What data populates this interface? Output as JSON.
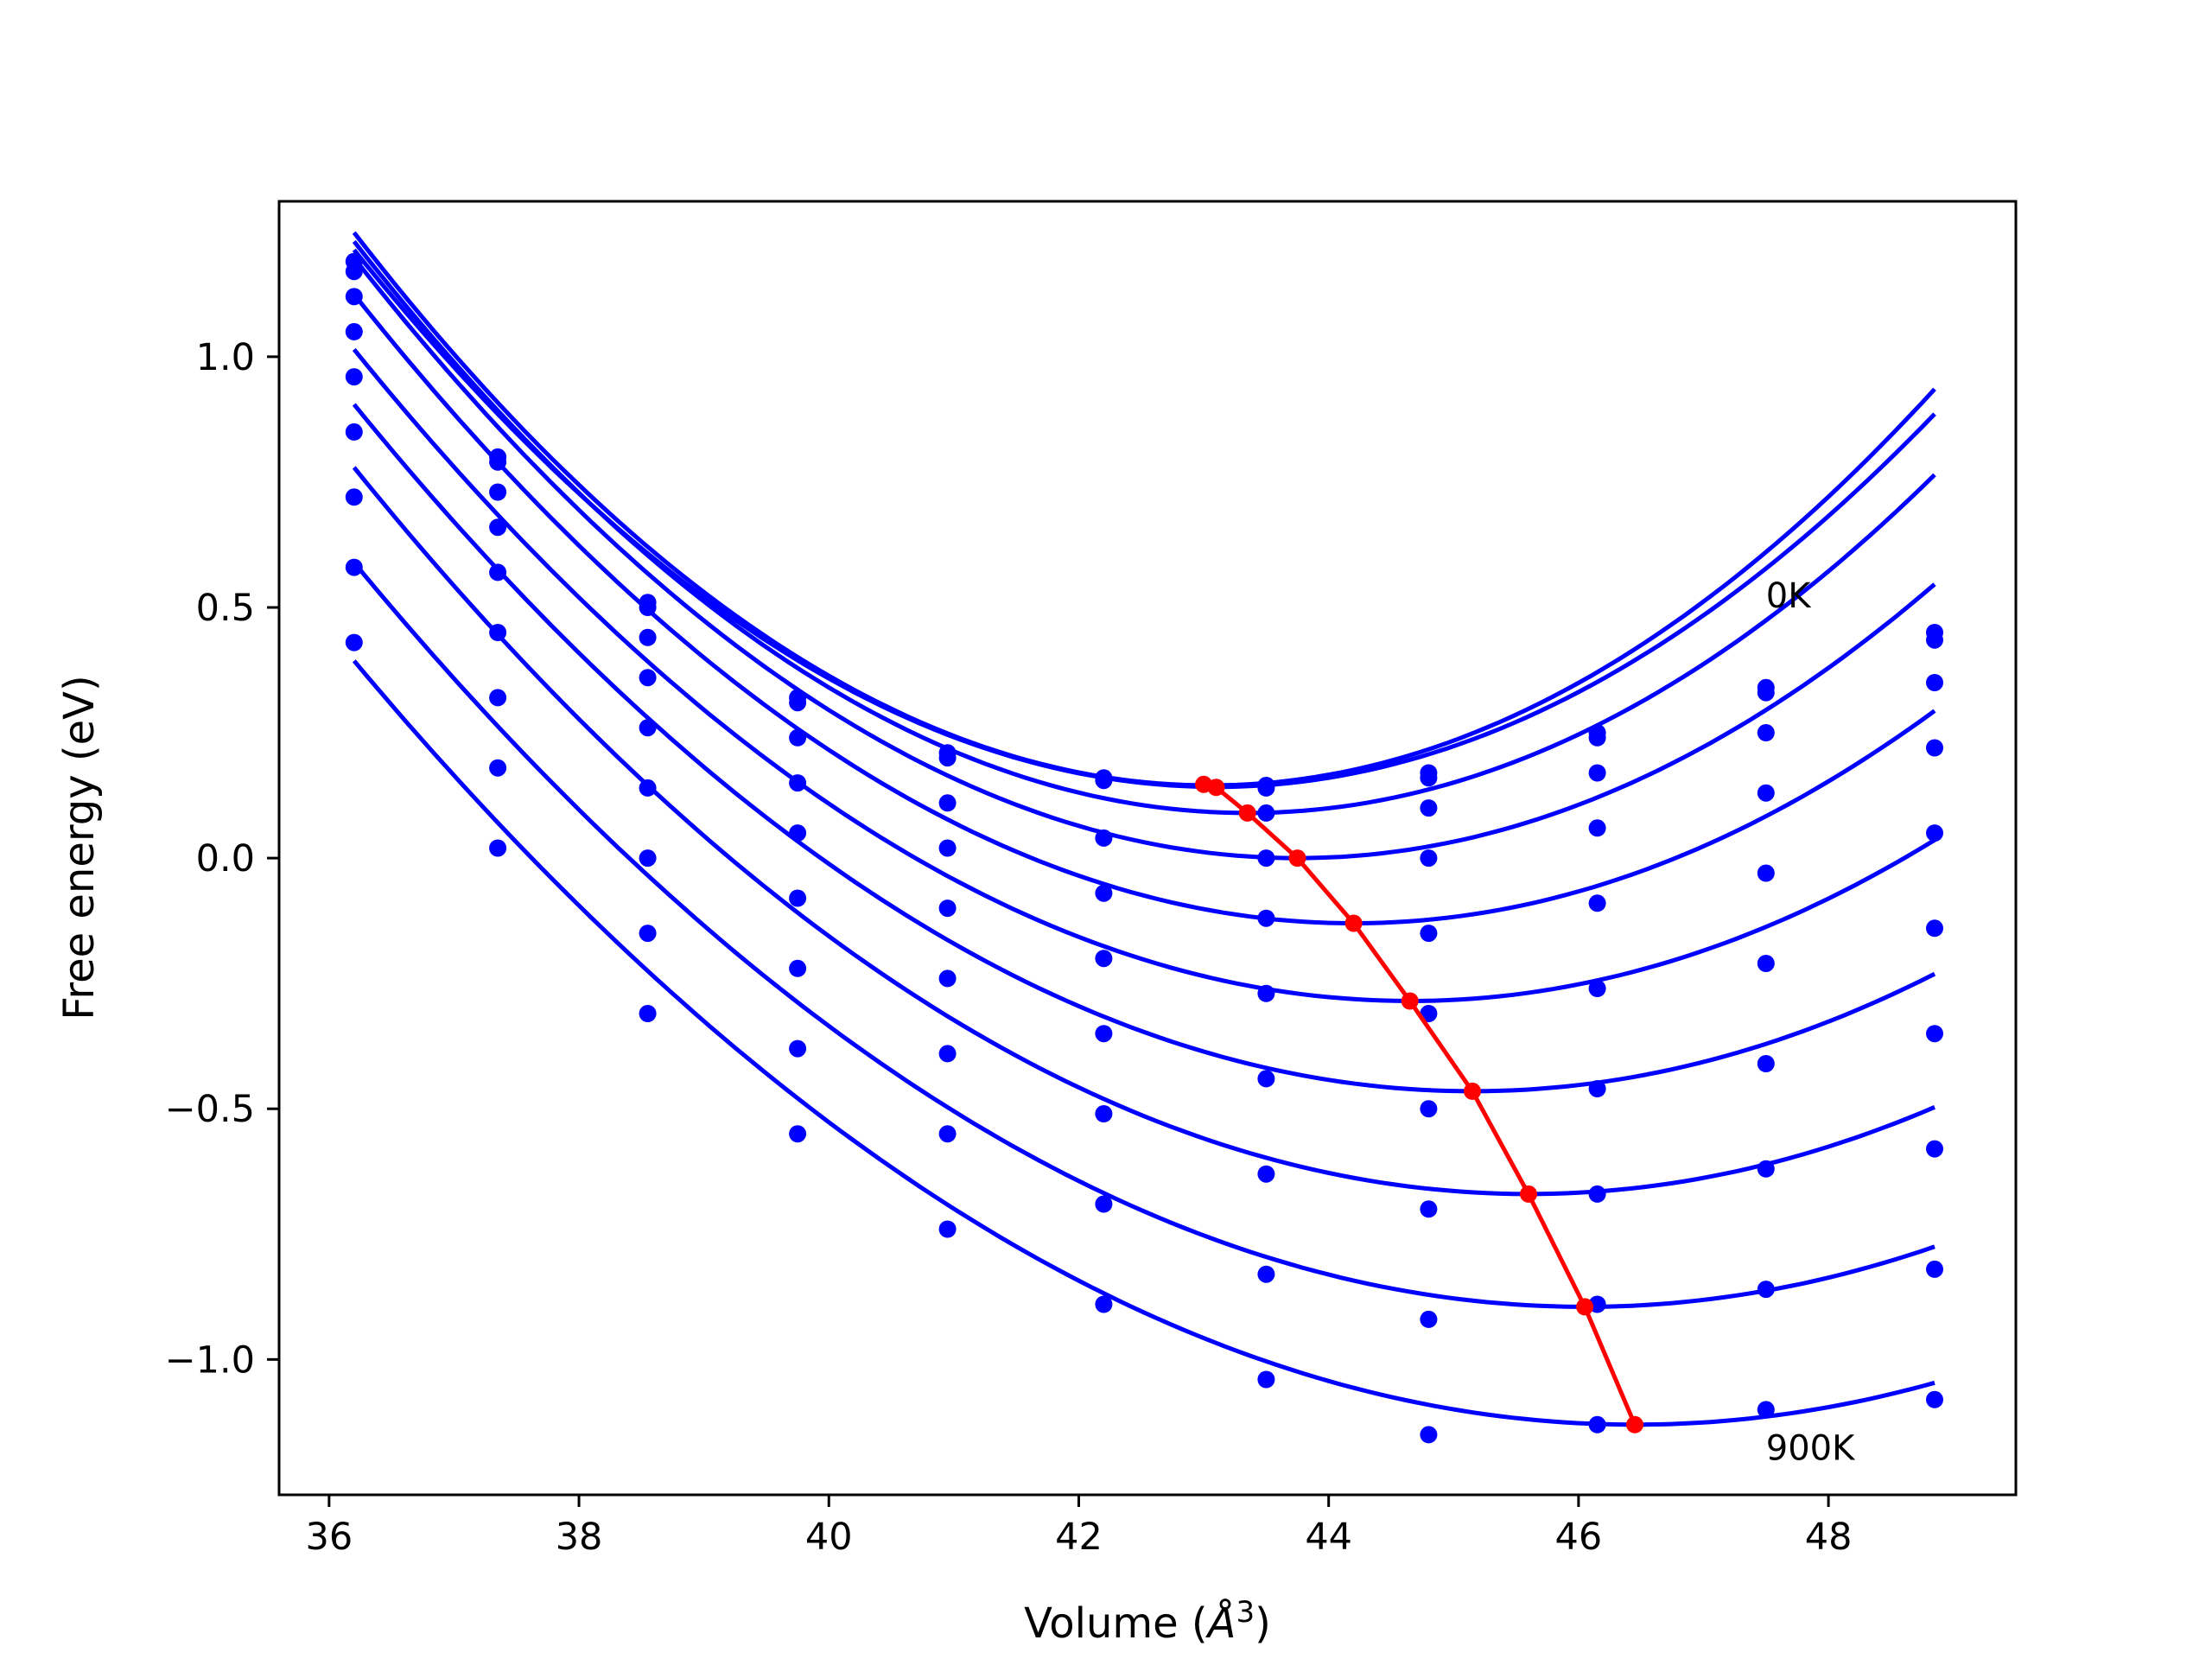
{
  "chart_data": {
    "type": "line",
    "xlabel": "Volume (",
    "xlabel_sym": "Å",
    "xlabel_exp": "3",
    "xlabel_close": ")",
    "ylabel": "Free energy (eV)",
    "xlim": [
      35.6,
      49.5
    ],
    "ylim": [
      -1.27,
      1.31
    ],
    "xticks": [
      36,
      38,
      40,
      42,
      44,
      46,
      48
    ],
    "xtick_labels": [
      "36",
      "38",
      "40",
      "42",
      "44",
      "46",
      "48"
    ],
    "yticks": [
      -1.0,
      -0.5,
      0.0,
      0.5,
      1.0
    ],
    "ytick_labels": [
      "−1.0",
      "−0.5",
      "0.0",
      "0.5",
      "1.0"
    ],
    "grid": false,
    "colors": {
      "fit": "#0000ff",
      "points": "#0000ff",
      "minimum": "#ff0000"
    },
    "annotations": [
      {
        "text": "0K",
        "x": 47.5,
        "y": 0.5
      },
      {
        "text": "900K",
        "x": 47.5,
        "y": -1.2
      }
    ],
    "x": [
      36.2,
      37.35,
      38.55,
      39.75,
      40.95,
      42.2,
      43.5,
      44.8,
      46.15,
      47.5,
      48.85
    ],
    "series": [
      {
        "points": [
          1.19,
          0.8,
          0.51,
          0.32,
          0.21,
          0.16,
          0.14,
          0.17,
          0.25,
          0.34,
          0.45
        ],
        "minimum": [
          43.0,
          0.147
        ]
      },
      {
        "points": [
          1.17,
          0.79,
          0.5,
          0.31,
          0.2,
          0.155,
          0.145,
          0.16,
          0.24,
          0.33,
          0.435
        ],
        "minimum": [
          43.1,
          0.141
        ]
      },
      {
        "points": [
          1.12,
          0.73,
          0.44,
          0.24,
          0.11,
          0.04,
          0.09,
          0.1,
          0.17,
          0.25,
          0.35
        ],
        "minimum": [
          43.35,
          0.09
        ]
      },
      {
        "points": [
          1.05,
          0.66,
          0.36,
          0.15,
          0.02,
          -0.07,
          0.0,
          0.0,
          0.06,
          0.13,
          0.22
        ],
        "minimum": [
          43.75,
          0.0
        ]
      },
      {
        "points": [
          0.96,
          0.57,
          0.26,
          0.05,
          -0.1,
          -0.2,
          -0.12,
          -0.15,
          -0.09,
          -0.03,
          0.05
        ],
        "minimum": [
          44.2,
          -0.13
        ]
      },
      {
        "points": [
          0.85,
          0.45,
          0.14,
          -0.08,
          -0.24,
          -0.35,
          -0.27,
          -0.31,
          -0.26,
          -0.21,
          -0.14
        ],
        "minimum": [
          44.65,
          -0.285
        ]
      },
      {
        "points": [
          0.72,
          0.32,
          0.0,
          -0.22,
          -0.39,
          -0.51,
          -0.44,
          -0.5,
          -0.46,
          -0.41,
          -0.35
        ],
        "minimum": [
          45.15,
          -0.465
        ]
      },
      {
        "points": [
          0.58,
          0.18,
          -0.15,
          -0.38,
          -0.55,
          -0.69,
          -0.63,
          -0.7,
          -0.67,
          -0.62,
          -0.58
        ],
        "minimum": [
          45.6,
          -0.67
        ]
      },
      {
        "points": [
          0.43,
          0.02,
          -0.31,
          -0.55,
          -0.74,
          -0.89,
          -0.83,
          -0.92,
          -0.89,
          -0.86,
          -0.82
        ],
        "minimum": [
          46.05,
          -0.895
        ]
      },
      {
        "points": [
          null,
          null,
          null,
          null,
          null,
          null,
          -1.04,
          -1.15,
          -1.13,
          -1.1,
          -1.08
        ],
        "minimum": [
          46.45,
          -1.13
        ]
      }
    ],
    "fits": [
      {
        "a": 0.0235,
        "v0": 43.05,
        "e0": 0.145
      },
      {
        "a": 0.0225,
        "v0": 43.1,
        "e0": 0.142
      },
      {
        "a": 0.0223,
        "v0": 43.35,
        "e0": 0.09
      },
      {
        "a": 0.021,
        "v0": 43.75,
        "e0": 0.0
      },
      {
        "a": 0.0196,
        "v0": 44.2,
        "e0": -0.13
      },
      {
        "a": 0.0182,
        "v0": 44.65,
        "e0": -0.285
      },
      {
        "a": 0.0171,
        "v0": 45.15,
        "e0": -0.465
      },
      {
        "a": 0.0164,
        "v0": 45.6,
        "e0": -0.67
      },
      {
        "a": 0.0153,
        "v0": 46.05,
        "e0": -0.895
      },
      {
        "a": 0.0145,
        "v0": 46.45,
        "e0": -1.13
      }
    ],
    "fit_start": [
      36.2,
      36.2,
      36.2,
      36.2,
      36.2,
      36.2,
      36.2,
      36.2,
      36.2,
      36.2
    ],
    "ninth_series_extra_points": [
      [
        38.55,
        -0.31
      ],
      [
        39.75,
        -0.55
      ],
      [
        40.95,
        -0.74
      ],
      [
        42.2,
        -0.89
      ]
    ]
  }
}
